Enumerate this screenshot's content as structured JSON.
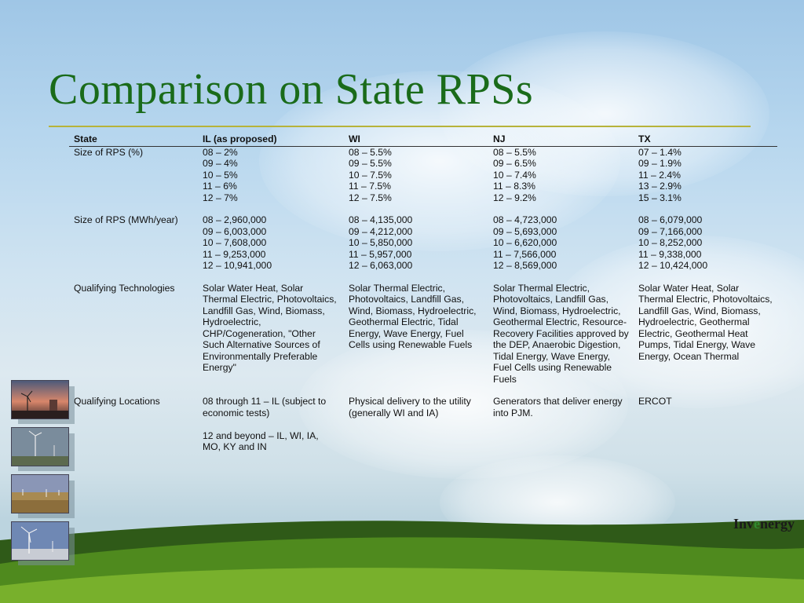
{
  "slide": {
    "title": "Comparison on State RPSs",
    "logo": {
      "pre": "Inv",
      "accent": "e",
      "post": "nergy"
    }
  },
  "colors": {
    "title": "#1a6b1a",
    "rule": "#b7b33a",
    "logo_accent": "#2f8a2f"
  },
  "thumbnails": [
    "windmill-sunset-photo",
    "wind-turbines-cloudy-photo",
    "wind-farm-field-photo",
    "wind-turbine-winter-photo"
  ],
  "table": {
    "headers": [
      "State",
      "IL (as proposed)",
      "WI",
      "NJ",
      "TX"
    ],
    "rows": [
      {
        "label": "Size of RPS (%)",
        "cells": [
          "08 – 2%\n09 – 4%\n10 – 5%\n11 – 6%\n12 – 7%",
          "08 – 5.5%\n09 – 5.5%\n10 – 7.5%\n11 – 7.5%\n12 – 7.5%",
          "08 – 5.5%\n09 – 6.5%\n10 – 7.4%\n11 – 8.3%\n12 – 9.2%",
          "07 – 1.4%\n09 – 1.9%\n11 – 2.4%\n13 – 2.9%\n15 – 3.1%"
        ]
      },
      {
        "label": "Size of RPS (MWh/year)",
        "cells": [
          "08 –   2,960,000\n09 –   6,003,000\n10 –   7,608,000\n11 –   9,253,000\n12 – 10,941,000",
          "08 – 4,135,000\n09 – 4,212,000\n10 – 5,850,000\n11 – 5,957,000\n12 – 6,063,000",
          "08 – 4,723,000\n09 – 5,693,000\n10 – 6,620,000\n11 – 7,566,000\n12 – 8,569,000",
          "08 –   6,079,000\n09 –   7,166,000\n10 –   8,252,000\n11 –   9,338,000\n12 – 10,424,000"
        ]
      },
      {
        "label": "Qualifying Technologies",
        "cells": [
          "Solar Water Heat, Solar Thermal Electric, Photovoltaics, Landfill Gas, Wind, Biomass, Hydroelectric, CHP/Cogeneration, \"Other Such Alternative Sources of Environmentally Preferable Energy\"",
          "Solar Thermal Electric, Photovoltaics, Landfill Gas, Wind, Biomass, Hydroelectric, Geothermal Electric, Tidal Energy, Wave Energy, Fuel Cells using Renewable Fuels",
          "Solar Thermal Electric, Photovoltaics, Landfill Gas, Wind, Biomass, Hydroelectric, Geothermal Electric, Resource-Recovery Facilities approved by the DEP, Anaerobic Digestion, Tidal Energy, Wave Energy, Fuel Cells using Renewable Fuels",
          "Solar Water Heat, Solar Thermal Electric, Photovoltaics, Landfill Gas, Wind, Biomass, Hydroelectric, Geothermal Electric, Geothermal Heat Pumps, Tidal Energy, Wave Energy, Ocean Thermal"
        ]
      },
      {
        "label": "Qualifying Locations",
        "cells": [
          "08 through 11 – IL (subject to economic tests)\n\n12 and beyond – IL, WI, IA, MO, KY and IN",
          "Physical delivery to the utility (generally WI and IA)",
          "Generators that deliver energy into PJM.",
          "ERCOT"
        ]
      }
    ]
  }
}
